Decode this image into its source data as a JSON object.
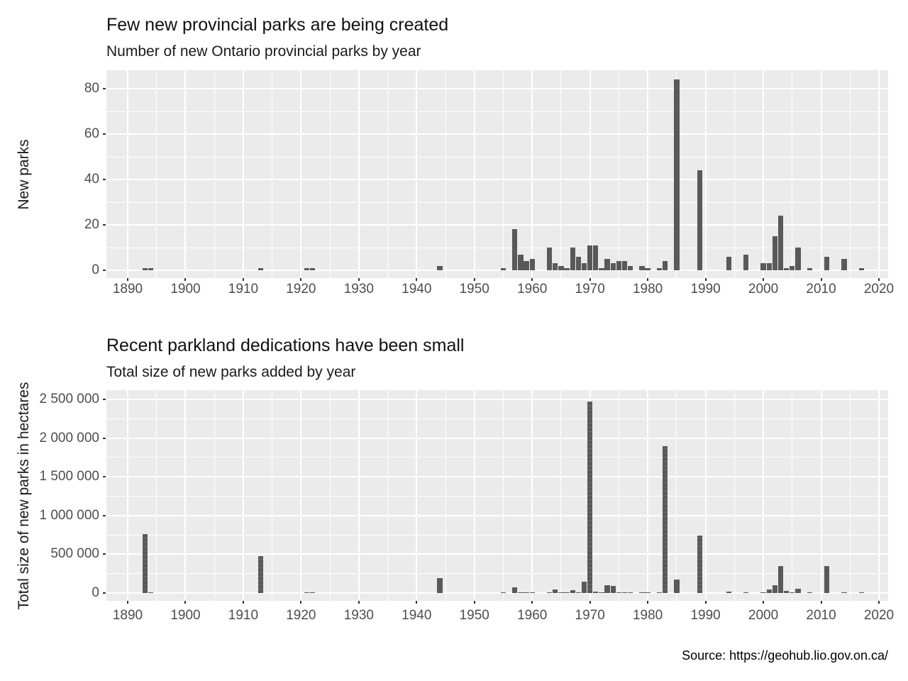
{
  "page": {
    "source_note": "Source: https://geohub.lio.gov.on.ca/",
    "background": "#FFFFFF"
  },
  "chart_data": [
    {
      "type": "bar",
      "title": "Few new provincial parks are being created",
      "subtitle": "Number of new Ontario provincial parks by year",
      "xlabel": "",
      "ylabel": "New parks",
      "x": [
        1893,
        1894,
        1913,
        1921,
        1922,
        1944,
        1955,
        1957,
        1958,
        1959,
        1960,
        1963,
        1964,
        1965,
        1966,
        1967,
        1968,
        1969,
        1970,
        1971,
        1972,
        1973,
        1974,
        1975,
        1976,
        1977,
        1979,
        1980,
        1982,
        1983,
        1985,
        1989,
        1994,
        1997,
        2000,
        2001,
        2002,
        2003,
        2004,
        2005,
        2006,
        2008,
        2011,
        2014,
        2017
      ],
      "values": [
        1,
        1,
        1,
        1,
        1,
        2,
        1,
        18,
        7,
        4,
        5,
        10,
        3,
        2,
        1,
        10,
        6,
        3,
        11,
        11,
        1,
        5,
        3,
        4,
        4,
        2,
        2,
        1,
        1,
        4,
        84,
        44,
        6,
        7,
        3,
        3,
        15,
        24,
        1,
        2,
        10,
        1,
        6,
        5,
        1
      ],
      "xlim": [
        1886.3,
        2021.6
      ],
      "ylim": [
        0,
        88
      ],
      "x_ticks": [
        1890,
        1900,
        1910,
        1920,
        1930,
        1940,
        1950,
        1960,
        1970,
        1980,
        1990,
        2000,
        2010,
        2020
      ],
      "x_tick_labels": [
        "1890",
        "1900",
        "1910",
        "1920",
        "1930",
        "1940",
        "1950",
        "1960",
        "1970",
        "1980",
        "1990",
        "2000",
        "2010",
        "2020"
      ],
      "x_minor_ticks": [
        1895,
        1905,
        1915,
        1925,
        1935,
        1945,
        1955,
        1965,
        1975,
        1985,
        1995,
        2005,
        2015
      ],
      "y_ticks": [
        0,
        20,
        40,
        60,
        80
      ],
      "y_tick_labels": [
        "0",
        "20",
        "40",
        "60",
        "80"
      ],
      "y_minor_ticks": [
        10,
        30,
        50,
        70
      ],
      "grid": true,
      "legend": "none",
      "bar_color": "#595959",
      "panel_bg": "#EBEBEB",
      "grid_color": "#FFFFFF",
      "axis_text_color": "#4D4D4D"
    },
    {
      "type": "bar",
      "title": "Recent parkland dedications have been small",
      "subtitle": "Total size of new parks added by year",
      "xlabel": "",
      "ylabel": "Total size of new parks in hectares",
      "x": [
        1893,
        1894,
        1913,
        1921,
        1922,
        1944,
        1955,
        1957,
        1958,
        1959,
        1960,
        1963,
        1964,
        1965,
        1966,
        1967,
        1968,
        1969,
        1970,
        1971,
        1972,
        1973,
        1974,
        1975,
        1976,
        1977,
        1979,
        1980,
        1982,
        1983,
        1985,
        1989,
        1994,
        1997,
        2000,
        2001,
        2002,
        2003,
        2004,
        2005,
        2006,
        2008,
        2011,
        2014,
        2017
      ],
      "values": [
        760000,
        3000,
        475000,
        3000,
        3000,
        190000,
        2000,
        75000,
        12000,
        6000,
        3000,
        12000,
        50000,
        9000,
        3000,
        35000,
        5000,
        150000,
        2470000,
        20000,
        3000,
        105000,
        95000,
        5000,
        5000,
        4000,
        5000,
        3000,
        3000,
        1900000,
        170000,
        740000,
        20000,
        5000,
        5000,
        50000,
        100000,
        350000,
        30000,
        5000,
        55000,
        2000,
        350000,
        10000,
        2000
      ],
      "xlim": [
        1886.3,
        2021.6
      ],
      "ylim": [
        0,
        2615000
      ],
      "x_ticks": [
        1890,
        1900,
        1910,
        1920,
        1930,
        1940,
        1950,
        1960,
        1970,
        1980,
        1990,
        2000,
        2010,
        2020
      ],
      "x_tick_labels": [
        "1890",
        "1900",
        "1910",
        "1920",
        "1930",
        "1940",
        "1950",
        "1960",
        "1970",
        "1980",
        "1990",
        "2000",
        "2010",
        "2020"
      ],
      "x_minor_ticks": [
        1895,
        1905,
        1915,
        1925,
        1935,
        1945,
        1955,
        1965,
        1975,
        1985,
        1995,
        2005,
        2015
      ],
      "y_ticks": [
        0,
        500000,
        1000000,
        1500000,
        2000000,
        2500000
      ],
      "y_tick_labels": [
        "0",
        "500 000",
        "1 000 000",
        "1 500 000",
        "2 000 000",
        "2 500 000"
      ],
      "y_minor_ticks": [
        250000,
        750000,
        1250000,
        1750000,
        2250000
      ],
      "grid": true,
      "legend": "none",
      "bar_color": "#595959",
      "panel_bg": "#EBEBEB",
      "grid_color": "#FFFFFF",
      "axis_text_color": "#4D4D4D"
    }
  ]
}
